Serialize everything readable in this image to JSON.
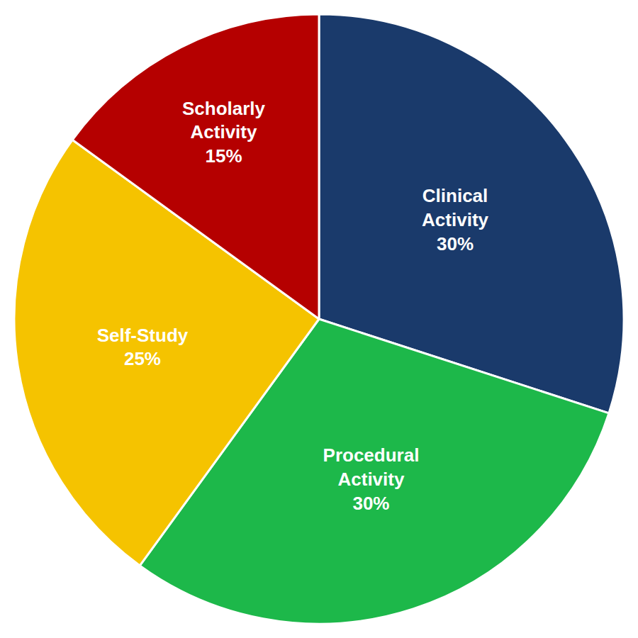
{
  "chart_data": {
    "type": "pie",
    "categories": [
      "Clinical\nActivity",
      "Procedural\nActivity",
      "Self-Study",
      "Scholarly\nActivity"
    ],
    "values": [
      30,
      30,
      25,
      15
    ],
    "value_labels": [
      "30%",
      "30%",
      "25%",
      "15%"
    ],
    "colors": [
      "#1a3a6b",
      "#1db84a",
      "#f5c300",
      "#b50000"
    ],
    "data_labels": true
  }
}
